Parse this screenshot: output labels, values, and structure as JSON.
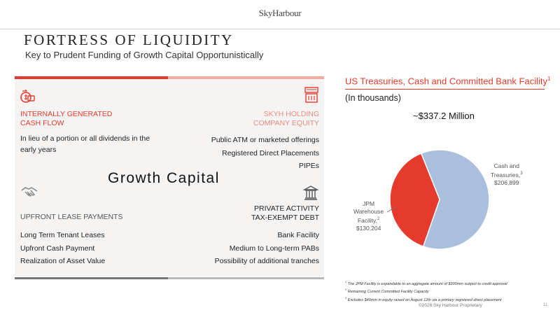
{
  "header": {
    "logo": "SkyHarbour",
    "title": "FORTRESS OF LIQUIDITY",
    "subtitle": "Key to Prudent Funding of Growth Capital Opportunistically"
  },
  "left": {
    "center_label": "Growth Capital",
    "q1": {
      "icon": "cash-flow-icon",
      "heading_1": "INTERNALLY GENERATED",
      "heading_2": "CASH FLOW",
      "lines": [
        "In lieu of a portion or all dividends in the",
        "early years"
      ]
    },
    "q2": {
      "icon": "equity-icon",
      "heading_1": "SKYH HOLDING",
      "heading_2": "COMPANY EQUITY",
      "lines": [
        "Public ATM or marketed offerings",
        "Registered Direct Placements",
        "PIPEs"
      ]
    },
    "q3": {
      "icon": "handshake-icon",
      "heading": "UPFRONT LEASE PAYMENTS",
      "lines": [
        "Long Term Tenant Leases",
        "Upfront Cash Payment",
        "Realization of Asset Value"
      ]
    },
    "q4": {
      "icon": "bank-icon",
      "heading_1": "PRIVATE ACTIVITY",
      "heading_2": "TAX-EXEMPT DEBT",
      "lines": [
        "Bank Facility",
        "Medium to Long-term PABs",
        "Possibility of additional tranches"
      ]
    }
  },
  "chart": {
    "title": "US Treasuries, Cash and Committed Bank Facility",
    "title_sup": "1",
    "subtitle": "(In thousands)",
    "total": "~$337.2 Million",
    "label_cash_1": "Cash and",
    "label_cash_2": "Treasuries,",
    "label_cash_sup": "3",
    "label_cash_value": "$206,899",
    "label_jpm_1": "JPM",
    "label_jpm_2": "Warehouse",
    "label_jpm_3": "Facility,",
    "label_jpm_sup": "2",
    "label_jpm_value": "$130,204"
  },
  "chart_data": {
    "type": "pie",
    "title": "US Treasuries, Cash and Committed Bank Facility",
    "subtitle": "(In thousands)",
    "labels": [
      "Cash and Treasuries",
      "JPM Warehouse Facility"
    ],
    "values": [
      206899,
      130204
    ],
    "colors": [
      "#a9bfdd",
      "#e53a2c"
    ]
  },
  "footnotes": [
    {
      "sup": "1",
      "text": "The JPM Facility is expandable to an aggregate amount of $300mm subject to credit approval"
    },
    {
      "sup": "2",
      "text": "Remaining Current Committed Facility Capacity"
    },
    {
      "sup": "3",
      "text": "Excludes $40mm in equity raised on August 12th via a primary registered direct placement"
    }
  ],
  "footer": {
    "copyright": "©2026 Sky Harbour Proprietary",
    "page": "11"
  },
  "colors": {
    "accent_red": "#e53a2c",
    "pie_blue": "#a9bfdd",
    "panel_bg": "#f6f4f3",
    "bar_gray": "#777777"
  }
}
